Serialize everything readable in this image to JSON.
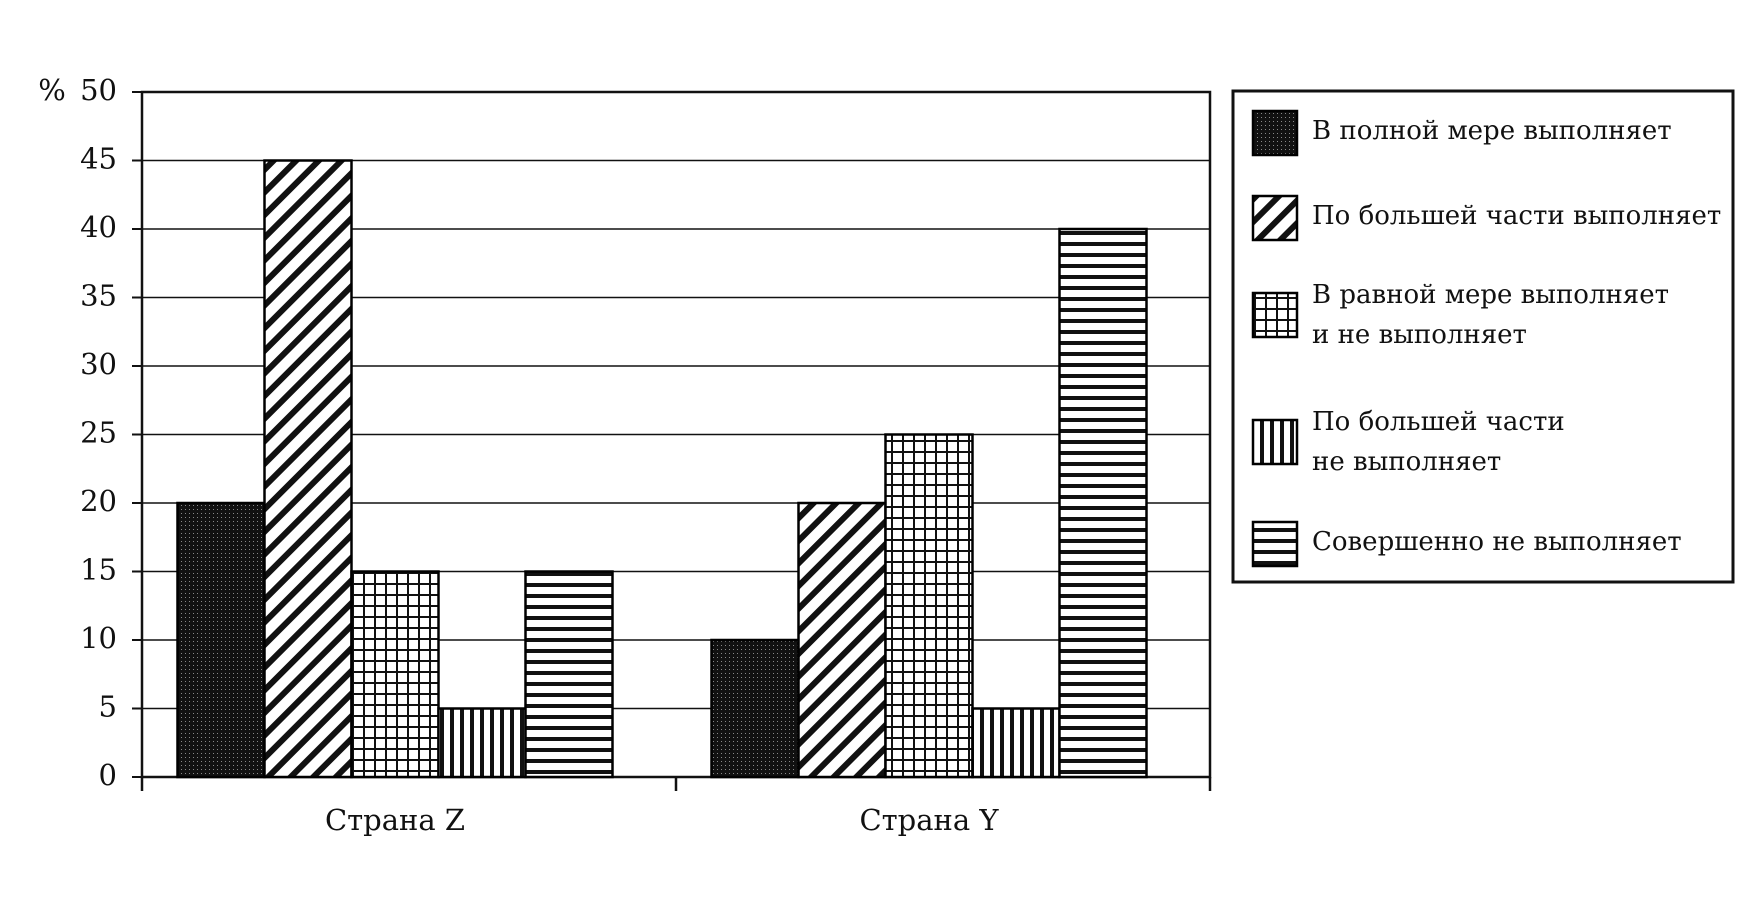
{
  "chart_data": {
    "type": "grouped-bar",
    "y_label": "%",
    "categories": [
      "Страна Z",
      "Страна Y"
    ],
    "series": [
      {
        "name": "В полной мере выполняет",
        "color": "#000000",
        "pattern": "dots",
        "values": [
          20,
          10
        ]
      },
      {
        "name": "По большей части выполняет",
        "color": "#000000",
        "pattern": "diagonal",
        "values": [
          45,
          20
        ]
      },
      {
        "name": "В равной мере выполняет\nи не выполняет",
        "color": "#000000",
        "pattern": "grid",
        "values": [
          15,
          25
        ]
      },
      {
        "name": "По большей части\nне выполняет",
        "color": "#000000",
        "pattern": "vertical",
        "values": [
          5,
          5
        ]
      },
      {
        "name": "Совершенно не выполняет",
        "color": "#000000",
        "pattern": "horizontal",
        "values": [
          15,
          40
        ]
      }
    ],
    "ylim": [
      0,
      50
    ],
    "yticks": [
      0,
      5,
      10,
      15,
      20,
      25,
      30,
      35,
      40,
      45,
      50
    ],
    "grid": true,
    "legend": "right"
  }
}
